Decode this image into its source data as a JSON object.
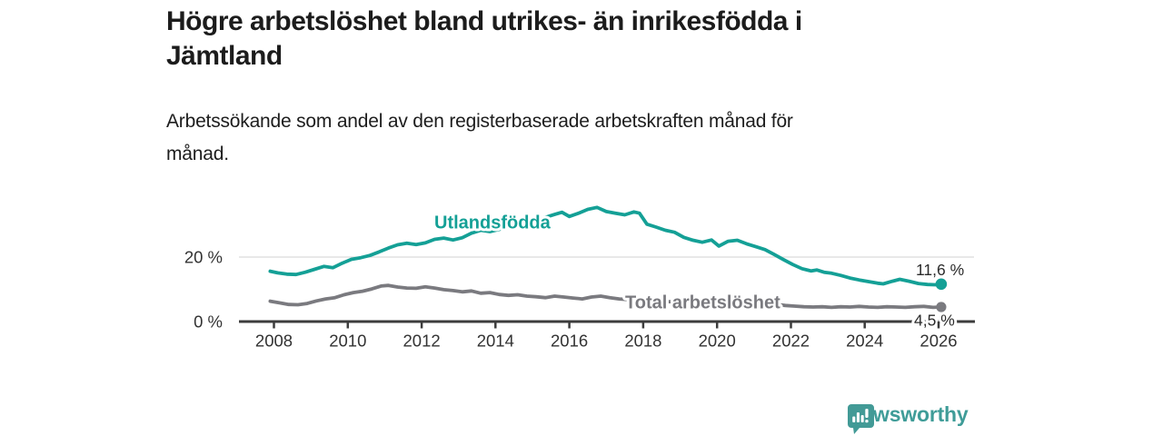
{
  "header": {
    "title_lines": [
      "Högre arbetslöshet bland utrikes- än inrikesfödda i",
      "Jämtland"
    ],
    "subtitle_lines": [
      "Arbetssökande som andel av den registerbaserade arbetskraften månad för",
      "månad."
    ]
  },
  "branding": {
    "logo_text": "Newsworthy",
    "logo_color": "#3f9c98"
  },
  "colors": {
    "foreign_born_line": "#14a096",
    "total_line": "#7a7a7f",
    "axis": "#3c3c3c",
    "grid": "#d9d9d9",
    "tick_label": "#333333",
    "value_label": "#2b2b2b",
    "title_text": "#1c1c1c"
  },
  "chart_data": {
    "type": "line",
    "title": "Högre arbetslöshet bland utrikes- än inrikesfödda i Jämtland",
    "subtitle": "Arbetssökande som andel av den registerbaserade arbetskraften månad för månad.",
    "unit": "%",
    "xlim": [
      2007.05,
      2027.0
    ],
    "ylim": [
      0,
      41
    ],
    "grid": "single-horizontal-at-20",
    "legend_position": "inline-labels",
    "x_ticks": [
      2008,
      2010,
      2012,
      2014,
      2016,
      2018,
      2020,
      2022,
      2024,
      2026
    ],
    "y_ticks": [
      {
        "value": 0,
        "label": "0 %"
      },
      {
        "value": 20,
        "label": "20 %"
      }
    ],
    "series": [
      {
        "name": "Utlandsfödda",
        "color": "#14a096",
        "end_label": "11,6 %",
        "end_value": 11.6,
        "points": [
          [
            2007.9,
            15.6
          ],
          [
            2008.1,
            15.1
          ],
          [
            2008.35,
            14.7
          ],
          [
            2008.6,
            14.6
          ],
          [
            2008.85,
            15.3
          ],
          [
            2009.1,
            16.2
          ],
          [
            2009.35,
            17.1
          ],
          [
            2009.6,
            16.7
          ],
          [
            2009.85,
            18.1
          ],
          [
            2010.1,
            19.3
          ],
          [
            2010.35,
            19.8
          ],
          [
            2010.6,
            20.5
          ],
          [
            2010.85,
            21.6
          ],
          [
            2011.1,
            22.8
          ],
          [
            2011.35,
            23.8
          ],
          [
            2011.6,
            24.3
          ],
          [
            2011.85,
            23.9
          ],
          [
            2012.1,
            24.4
          ],
          [
            2012.35,
            25.5
          ],
          [
            2012.6,
            25.9
          ],
          [
            2012.85,
            25.3
          ],
          [
            2013.1,
            26.0
          ],
          [
            2013.35,
            27.4
          ],
          [
            2013.6,
            28.3
          ],
          [
            2013.85,
            27.9
          ],
          [
            2014.1,
            28.6
          ],
          [
            2014.35,
            29.2
          ],
          [
            2014.6,
            29.9
          ],
          [
            2014.85,
            30.7
          ],
          [
            2015.1,
            31.5
          ],
          [
            2015.35,
            32.3
          ],
          [
            2015.6,
            33.2
          ],
          [
            2015.8,
            33.9
          ],
          [
            2016.0,
            32.6
          ],
          [
            2016.25,
            33.6
          ],
          [
            2016.5,
            34.8
          ],
          [
            2016.75,
            35.4
          ],
          [
            2017.0,
            34.1
          ],
          [
            2017.25,
            33.6
          ],
          [
            2017.5,
            33.1
          ],
          [
            2017.75,
            34.0
          ],
          [
            2017.9,
            33.6
          ],
          [
            2018.1,
            30.2
          ],
          [
            2018.35,
            29.3
          ],
          [
            2018.6,
            28.3
          ],
          [
            2018.85,
            27.7
          ],
          [
            2019.1,
            26.1
          ],
          [
            2019.35,
            25.2
          ],
          [
            2019.6,
            24.6
          ],
          [
            2019.85,
            25.3
          ],
          [
            2020.05,
            23.4
          ],
          [
            2020.3,
            24.9
          ],
          [
            2020.55,
            25.2
          ],
          [
            2020.8,
            24.1
          ],
          [
            2021.05,
            23.2
          ],
          [
            2021.3,
            22.3
          ],
          [
            2021.55,
            20.8
          ],
          [
            2021.8,
            19.2
          ],
          [
            2022.05,
            17.7
          ],
          [
            2022.3,
            16.4
          ],
          [
            2022.55,
            15.7
          ],
          [
            2022.7,
            16.0
          ],
          [
            2022.9,
            15.3
          ],
          [
            2023.1,
            15.0
          ],
          [
            2023.35,
            14.3
          ],
          [
            2023.6,
            13.5
          ],
          [
            2023.85,
            12.9
          ],
          [
            2024.1,
            12.4
          ],
          [
            2024.35,
            11.9
          ],
          [
            2024.5,
            11.7
          ],
          [
            2024.75,
            12.5
          ],
          [
            2024.95,
            13.1
          ],
          [
            2025.2,
            12.5
          ],
          [
            2025.45,
            11.8
          ],
          [
            2025.7,
            11.5
          ],
          [
            2025.9,
            11.4
          ],
          [
            2026.07,
            11.6
          ]
        ]
      },
      {
        "name": "Total arbetslöshet",
        "color": "#7a7a7f",
        "end_label": "4,5 %",
        "end_value": 4.5,
        "points": [
          [
            2007.9,
            6.3
          ],
          [
            2008.15,
            5.8
          ],
          [
            2008.4,
            5.3
          ],
          [
            2008.65,
            5.2
          ],
          [
            2008.9,
            5.6
          ],
          [
            2009.15,
            6.4
          ],
          [
            2009.4,
            7.0
          ],
          [
            2009.65,
            7.4
          ],
          [
            2009.9,
            8.3
          ],
          [
            2010.15,
            9.0
          ],
          [
            2010.4,
            9.4
          ],
          [
            2010.65,
            10.1
          ],
          [
            2010.9,
            11.0
          ],
          [
            2011.1,
            11.2
          ],
          [
            2011.35,
            10.7
          ],
          [
            2011.6,
            10.4
          ],
          [
            2011.85,
            10.3
          ],
          [
            2012.1,
            10.8
          ],
          [
            2012.35,
            10.4
          ],
          [
            2012.6,
            9.9
          ],
          [
            2012.85,
            9.6
          ],
          [
            2013.1,
            9.2
          ],
          [
            2013.35,
            9.5
          ],
          [
            2013.6,
            8.8
          ],
          [
            2013.85,
            9.0
          ],
          [
            2014.1,
            8.4
          ],
          [
            2014.35,
            8.1
          ],
          [
            2014.6,
            8.3
          ],
          [
            2014.85,
            7.9
          ],
          [
            2015.1,
            7.7
          ],
          [
            2015.35,
            7.4
          ],
          [
            2015.6,
            7.9
          ],
          [
            2015.85,
            7.6
          ],
          [
            2016.1,
            7.3
          ],
          [
            2016.35,
            7.0
          ],
          [
            2016.6,
            7.6
          ],
          [
            2016.85,
            7.9
          ],
          [
            2017.1,
            7.4
          ],
          [
            2017.35,
            7.0
          ],
          [
            2017.6,
            6.8
          ],
          [
            2017.85,
            6.7
          ],
          [
            2018.1,
            6.6
          ],
          [
            2018.35,
            6.4
          ],
          [
            2018.6,
            6.2
          ],
          [
            2018.85,
            6.1
          ],
          [
            2019.1,
            6.0
          ],
          [
            2019.35,
            5.9
          ],
          [
            2019.6,
            5.8
          ],
          [
            2019.85,
            5.9
          ],
          [
            2020.1,
            6.3
          ],
          [
            2020.35,
            7.0
          ],
          [
            2020.6,
            6.8
          ],
          [
            2020.85,
            6.4
          ],
          [
            2021.1,
            6.0
          ],
          [
            2021.35,
            5.6
          ],
          [
            2021.6,
            5.3
          ],
          [
            2021.85,
            5.0
          ],
          [
            2022.1,
            4.8
          ],
          [
            2022.35,
            4.6
          ],
          [
            2022.6,
            4.5
          ],
          [
            2022.85,
            4.6
          ],
          [
            2023.1,
            4.4
          ],
          [
            2023.35,
            4.6
          ],
          [
            2023.6,
            4.5
          ],
          [
            2023.85,
            4.7
          ],
          [
            2024.1,
            4.5
          ],
          [
            2024.35,
            4.4
          ],
          [
            2024.6,
            4.6
          ],
          [
            2024.85,
            4.5
          ],
          [
            2025.1,
            4.4
          ],
          [
            2025.35,
            4.6
          ],
          [
            2025.6,
            4.7
          ],
          [
            2025.85,
            4.4
          ],
          [
            2026.07,
            4.5
          ]
        ]
      }
    ]
  }
}
